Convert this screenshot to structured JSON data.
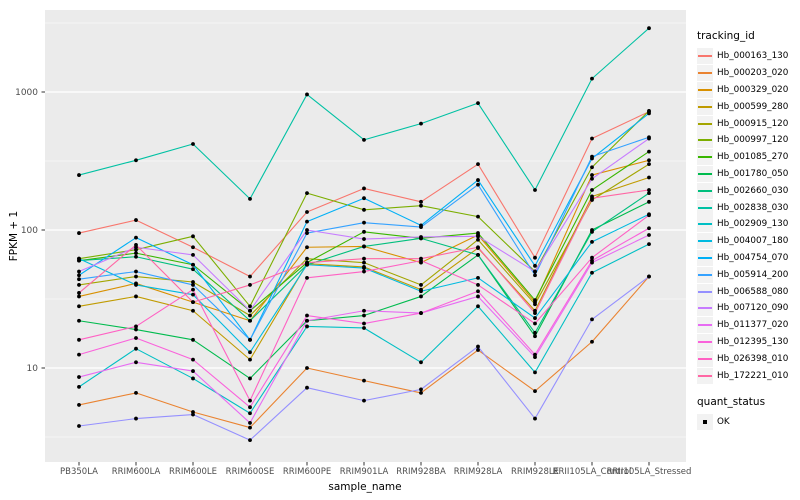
{
  "figure_title": "",
  "axes": {
    "x_title": "sample_name",
    "y_title": "FPKM + 1",
    "y_tick_labels": [
      "10",
      "100",
      "1000"
    ],
    "tick_color": "#333333",
    "tick_label_color": "#4d4d4d"
  },
  "panel": {
    "background": "#ebebeb",
    "grid_color": "#ffffff",
    "point_color": "#000000"
  },
  "legend": {
    "tracking_title": "tracking_id",
    "quant_title": "quant_status",
    "quant_label": "OK",
    "key_fill": "#f2f2f2"
  },
  "chart_data": {
    "type": "line",
    "title": "",
    "xlabel": "sample_name",
    "ylabel": "FPKM + 1",
    "yscale": "log10",
    "ylim": [
      2.1,
      3900
    ],
    "y_major_ticks": [
      10,
      100,
      1000
    ],
    "y_minor_gridlines": [
      3.162,
      31.62,
      316.2,
      3162
    ],
    "grid": true,
    "legend_position": "right",
    "point_marker": "black dot (quant_status OK)",
    "x": [
      "PB350LA",
      "RRIM600LA",
      "RRIM600LE",
      "RRIM600SE",
      "RRIM600PE",
      "RRIM901LA",
      "RRIM928BA",
      "RRIM928LA",
      "RRIM928LE",
      "RRII105LA_Control",
      "RRII105LA_Stressed"
    ],
    "series": [
      {
        "name": "Hb_000163_130",
        "color": "#F8766D",
        "values": [
          95,
          118,
          75,
          46,
          135,
          200,
          160,
          300,
          63,
          460,
          720
        ]
      },
      {
        "name": "Hb_000203_020",
        "color": "#EA8331",
        "values": [
          5.4,
          6.6,
          4.8,
          3.7,
          10,
          8.1,
          6.6,
          13.5,
          6.8,
          15.5,
          46
        ]
      },
      {
        "name": "Hb_000329_020",
        "color": "#D89000",
        "values": [
          33,
          41,
          30,
          22,
          75,
          76,
          58,
          92,
          30,
          250,
          320
        ]
      },
      {
        "name": "Hb_000599_280",
        "color": "#C09B00",
        "values": [
          28,
          33,
          26,
          11.5,
          57,
          54,
          37,
          74,
          26,
          175,
          240
        ]
      },
      {
        "name": "Hb_000915_120",
        "color": "#A3A500",
        "values": [
          40,
          46,
          42,
          24,
          62,
          58,
          40,
          85,
          29,
          165,
          300
        ]
      },
      {
        "name": "Hb_000997_120",
        "color": "#7CAE00",
        "values": [
          62,
          72,
          90,
          28,
          185,
          140,
          150,
          125,
          50,
          285,
          730
        ]
      },
      {
        "name": "Hb_001085_270",
        "color": "#39B600",
        "values": [
          60,
          68,
          56,
          26,
          58,
          97,
          87,
          95,
          31,
          195,
          370
        ]
      },
      {
        "name": "Hb_001780_050",
        "color": "#00BB4E",
        "values": [
          22,
          19,
          16,
          8.4,
          22,
          24,
          33,
          66,
          17,
          100,
          160
        ]
      },
      {
        "name": "Hb_002660_030",
        "color": "#00BF7D",
        "values": [
          60,
          64,
          52,
          22,
          56,
          76,
          87,
          66,
          18,
          97,
          185
        ]
      },
      {
        "name": "Hb_002838_030",
        "color": "#00C1A3",
        "values": [
          250,
          320,
          420,
          168,
          960,
          450,
          590,
          830,
          195,
          1250,
          2900
        ]
      },
      {
        "name": "Hb_002909_130",
        "color": "#00BFC4",
        "values": [
          7.3,
          13.8,
          8.4,
          4.7,
          20,
          19.5,
          11,
          28,
          9.3,
          49,
          79
        ]
      },
      {
        "name": "Hb_004007_180",
        "color": "#00BAE0",
        "values": [
          62,
          40,
          34,
          13,
          56,
          53,
          36,
          45,
          23,
          82,
          130
        ]
      },
      {
        "name": "Hb_004754_070",
        "color": "#00B0F6",
        "values": [
          47,
          88,
          56,
          16,
          115,
          170,
          108,
          230,
          55,
          330,
          700
        ]
      },
      {
        "name": "Hb_005914_200",
        "color": "#35A2FF",
        "values": [
          44,
          50,
          40,
          16,
          95,
          113,
          105,
          213,
          47,
          340,
          470
        ]
      },
      {
        "name": "Hb_006588_080",
        "color": "#9590FF",
        "values": [
          3.8,
          4.3,
          4.6,
          3.0,
          7.2,
          5.8,
          7.0,
          14.3,
          4.3,
          22.5,
          46
        ]
      },
      {
        "name": "Hb_007120_090",
        "color": "#C77CFF",
        "values": [
          50,
          75,
          66,
          26,
          100,
          86,
          89,
          90,
          50,
          235,
          460
        ]
      },
      {
        "name": "Hb_011377_020",
        "color": "#E76BF3",
        "values": [
          8.6,
          11,
          9.5,
          4.0,
          22,
          26,
          25,
          33,
          12,
          58,
          92
        ]
      },
      {
        "name": "Hb_012395_130",
        "color": "#FA62DB",
        "values": [
          12.5,
          16.5,
          11.5,
          5.2,
          24,
          21,
          25,
          36,
          12.5,
          60,
          103
        ]
      },
      {
        "name": "Hb_026398_010",
        "color": "#FF61C3",
        "values": [
          16,
          20,
          37,
          5.8,
          45,
          50,
          60,
          40,
          21,
          63,
          128
        ]
      },
      {
        "name": "Hb_172221_010",
        "color": "#FF67A4",
        "values": [
          35,
          78,
          30,
          40,
          58,
          62,
          62,
          75,
          25,
          170,
          195
        ]
      }
    ]
  }
}
